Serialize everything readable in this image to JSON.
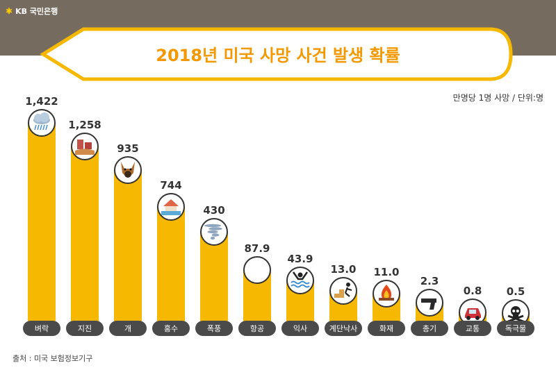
{
  "brand": {
    "name": "KB 국민은행"
  },
  "unit_note": "만명당 1명 사망 / 단위:명",
  "source": "출처 : 미국 보험정보기구",
  "colors": {
    "bar": "#f6b800",
    "banner_border": "#f6b800",
    "title": "#f39800",
    "top_band": "#756c5f",
    "label_pill": "#4a4a4a"
  },
  "chart_data": {
    "type": "bar",
    "title": "2018년 미국 사망 사건 발생 확률",
    "categories": [
      "벼락",
      "지진",
      "개",
      "홍수",
      "폭풍",
      "항공",
      "익사",
      "계단낙사",
      "화재",
      "총기",
      "교통",
      "독극물"
    ],
    "values": [
      1422,
      1258,
      935,
      744,
      430,
      87.9,
      43.9,
      13.0,
      11.0,
      2.3,
      0.8,
      0.5
    ],
    "value_labels": [
      "1,422",
      "1,258",
      "935",
      "744",
      "430",
      "87.9",
      "43.9",
      "13.0",
      "11.0",
      "2.3",
      "0.8",
      "0.5"
    ],
    "icons": [
      "rain-cloud-icon",
      "earthquake-icon",
      "dog-icon",
      "flood-house-icon",
      "tornado-icon",
      "airplane-icon",
      "drowning-icon",
      "stair-fall-icon",
      "fire-icon",
      "gun-icon",
      "car-crash-icon",
      "skull-poison-icon"
    ],
    "xlabel": "",
    "ylabel": "",
    "grid": false,
    "legend": "none"
  }
}
